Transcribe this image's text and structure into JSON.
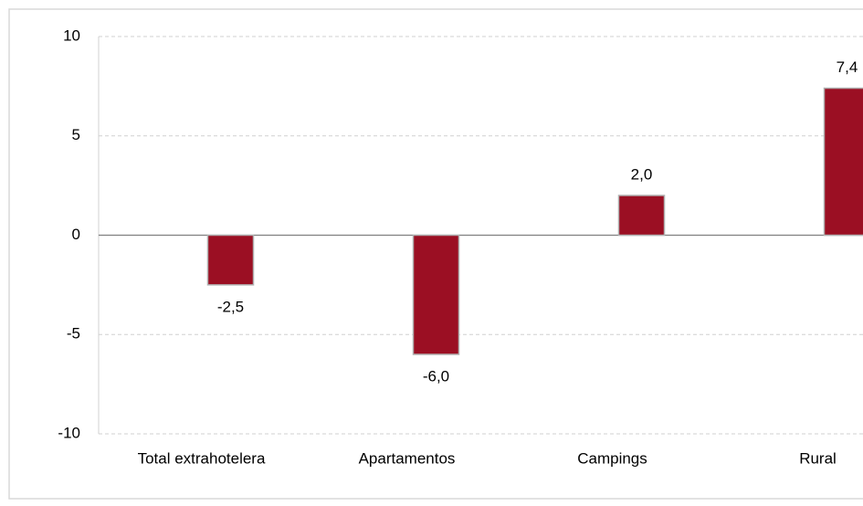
{
  "chart_data": {
    "type": "bar",
    "categories": [
      "Total extrahotelera",
      "Apartamentos",
      "Campings",
      "Rural"
    ],
    "values": [
      -2.5,
      -6.0,
      2.0,
      7.4
    ],
    "value_labels": [
      "-2,5",
      "-6,0",
      "2,0",
      "7,4"
    ],
    "color": "#9b0f23",
    "ylim": [
      -10,
      10
    ],
    "yticks": [
      10,
      5,
      0,
      -5,
      -10
    ],
    "grid": true
  }
}
